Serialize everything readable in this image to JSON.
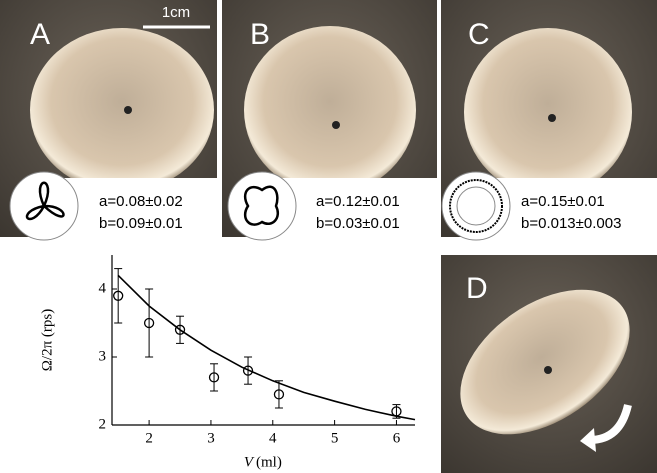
{
  "panels": [
    {
      "label": "A",
      "a": "a=0.08±0.02",
      "b": "b=0.09±0.01"
    },
    {
      "label": "B",
      "a": "a=0.12±0.01",
      "b": "b=0.03±0.01"
    },
    {
      "label": "C",
      "a": "a=0.15±0.01",
      "b": "b=0.013±0.003"
    }
  ],
  "scale_bar": "1cm",
  "panel_d": {
    "label": "D"
  },
  "chart_data": {
    "type": "scatter",
    "x_label_var": "V",
    "x_label_unit": "(ml)",
    "y_label": "Ω/2π (rps)",
    "xlim": [
      1.4,
      6.3
    ],
    "ylim": [
      2,
      4.5
    ],
    "xticks": [
      2,
      3,
      4,
      5,
      6
    ],
    "yticks": [
      2,
      3,
      4
    ],
    "series": [
      {
        "type": "scatter",
        "color": "#000000",
        "x": [
          1.5,
          2,
          2.5,
          3.05,
          3.6,
          4.1,
          6
        ],
        "values": [
          3.9,
          3.5,
          3.4,
          2.7,
          2.8,
          2.45,
          2.2
        ],
        "errors": [
          0.4,
          0.5,
          0.2,
          0.2,
          0.2,
          0.2,
          0.1
        ]
      },
      {
        "type": "line",
        "color": "#000000",
        "x": [
          1.5,
          2,
          2.5,
          3,
          3.5,
          4,
          4.5,
          5,
          5.5,
          6,
          6.3
        ],
        "values": [
          4.2,
          3.75,
          3.4,
          3.1,
          2.85,
          2.65,
          2.48,
          2.35,
          2.23,
          2.13,
          2.08
        ]
      }
    ]
  }
}
